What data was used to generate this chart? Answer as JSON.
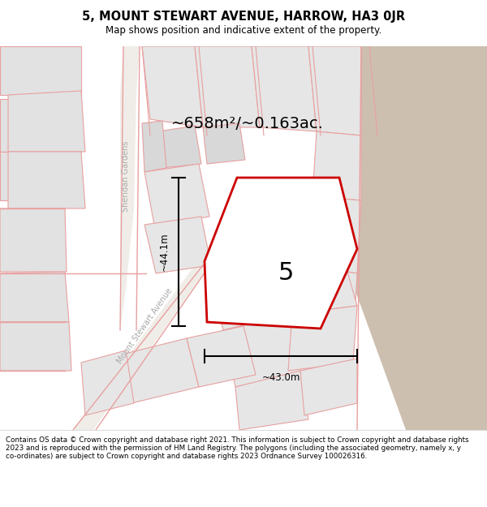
{
  "title": "5, MOUNT STEWART AVENUE, HARROW, HA3 0JR",
  "subtitle": "Map shows position and indicative extent of the property.",
  "area_label": "~658m²/~0.163ac.",
  "label_number": "5",
  "dim_vertical": "~44.1m",
  "dim_horizontal": "~43.0m",
  "street_label1": "Sheridan Gardens",
  "street_label2": "Mount Stewart Avenue",
  "footer": "Contains OS data © Crown copyright and database right 2021. This information is subject to Crown copyright and database rights 2023 and is reproduced with the permission of HM Land Registry. The polygons (including the associated geometry, namely x, y co-ordinates) are subject to Crown copyright and database rights 2023 Ordnance Survey 100026316.",
  "bg_color": "#f2ede8",
  "red_line_color": "#cc0000",
  "pink_line_color": "#e8a0a0",
  "figsize": [
    6.0,
    6.25
  ],
  "dpi": 100
}
